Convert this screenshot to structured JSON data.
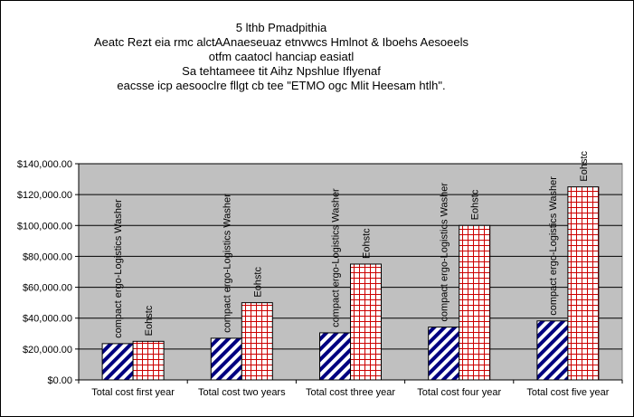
{
  "chart_data": {
    "type": "bar",
    "title_lines": [
      "5 lthb Pmadpithia",
      "Aeatc Rezt eia rmc alctAAnaeseuaz etnvwcs Hmlnot & Iboehs Aesoeels",
      "otfm caatocl hanciap easiatl",
      "Sa tehtameee tit Aihz Npshlue Iflyenaf",
      "eacsse icp aesooclre fllgt cb tee \"ETMO ogc Mlit Heesam htlh\"."
    ],
    "categories": [
      "Total cost first year",
      "Total cost two years",
      "Total cost three year",
      "Total cost four year",
      "Total cost five year"
    ],
    "series": [
      {
        "name": "compact ergo-Logistics Washer",
        "values": [
          23500,
          27000,
          30500,
          34200,
          38200
        ],
        "color": "#000080",
        "pattern": "diagonal-stripes"
      },
      {
        "name": "Eohstc",
        "values": [
          25000,
          50000,
          75000,
          100000,
          125000
        ],
        "color": "#cc0000",
        "pattern": "grid"
      }
    ],
    "data_labels": [
      [
        "compact ergo-Logistics Washer",
        "compact ergo-Logistics Washer",
        "compact ergo-Logistics Washer",
        "compact ergo-Logistics Washer",
        "compact ergo-Logistics Washer"
      ],
      [
        "Eohstc",
        "Eohstc",
        "Eohstc",
        "Eohstc",
        "Eohstc"
      ]
    ],
    "y_ticks": [
      "$0.00",
      "$20,000.00",
      "$40,000.00",
      "$60,000.00",
      "$80,000.00",
      "$100,000.00",
      "$120,000.00",
      "$140,000.00"
    ],
    "ylim": [
      0,
      140000
    ],
    "y_tick_step": 20000,
    "grid": true,
    "legend": "none",
    "plot_background": "#c0c0c0"
  }
}
